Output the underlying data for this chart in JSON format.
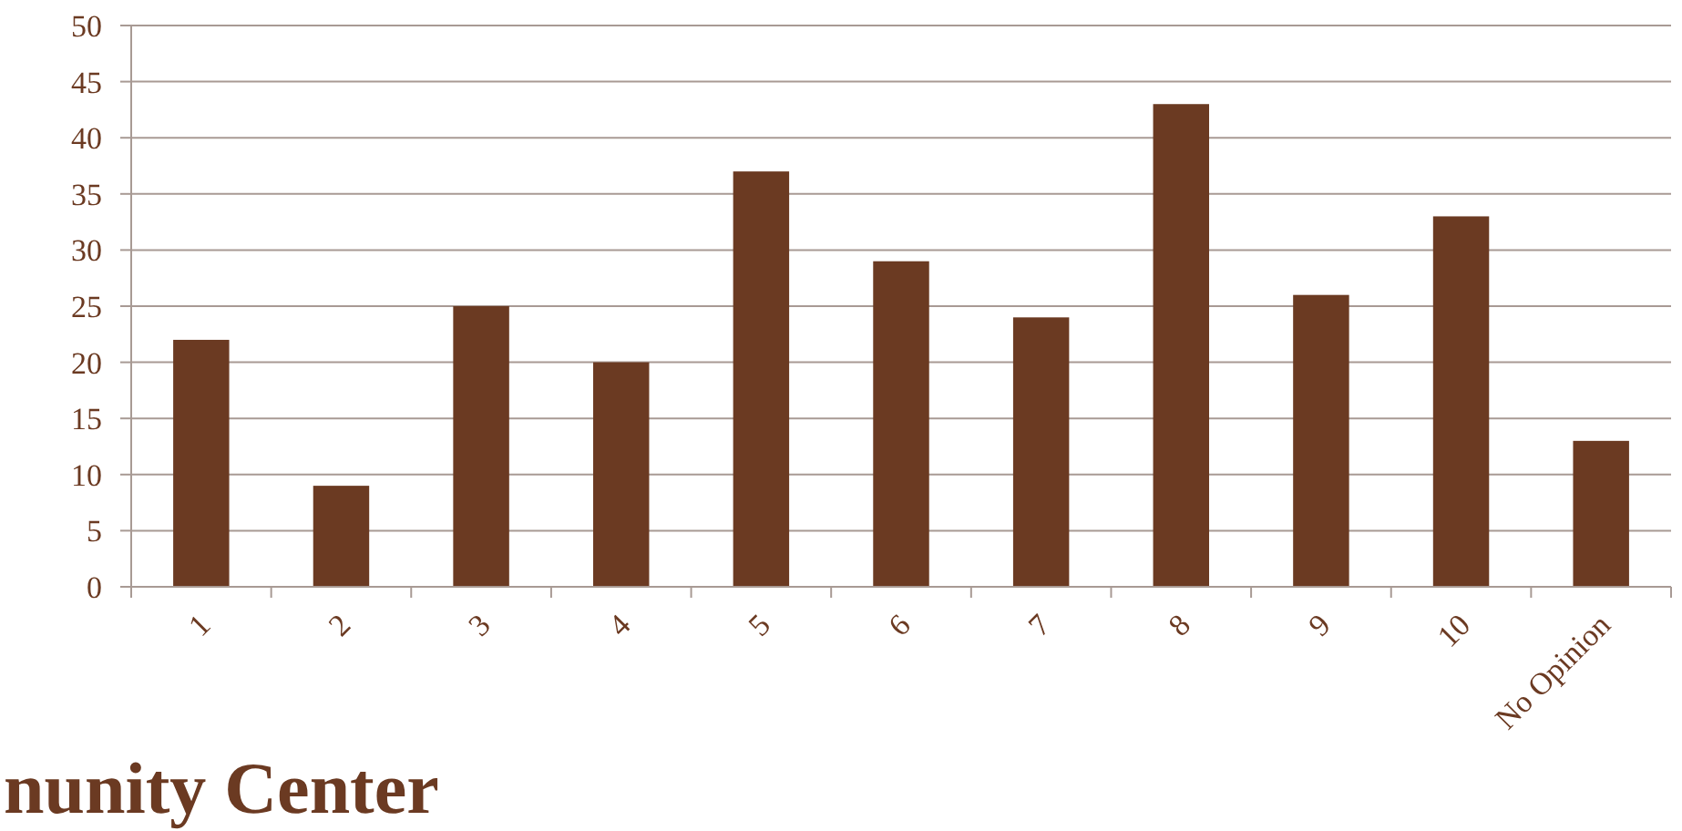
{
  "chart_data": {
    "type": "bar",
    "title": "nunity Center",
    "categories": [
      "1",
      "2",
      "3",
      "4",
      "5",
      "6",
      "7",
      "8",
      "9",
      "10",
      "No Opinion"
    ],
    "values": [
      22,
      9,
      25,
      20,
      37,
      29,
      24,
      43,
      26,
      33,
      13
    ],
    "color": "#6b3a22",
    "ylim": [
      0,
      50
    ],
    "yticks": [
      0,
      5,
      10,
      15,
      20,
      25,
      30,
      35,
      40,
      45,
      50
    ],
    "grid": "y"
  }
}
